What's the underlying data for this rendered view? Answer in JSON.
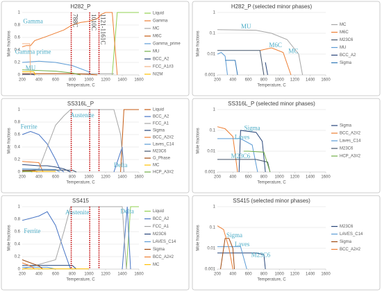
{
  "chart_data": [
    {
      "type": "line",
      "title": "H282_P",
      "xlabel": "Temperature, C",
      "ylabel": "Mole fractions",
      "log": false,
      "xlim": [
        200,
        1600
      ],
      "xticks": [
        200,
        400,
        600,
        800,
        1000,
        1200,
        1400,
        1600
      ],
      "ylim": [
        0,
        1
      ],
      "yticks": [
        0,
        0.2,
        0.4,
        0.6,
        0.8,
        1
      ],
      "grid": true,
      "vlines": [
        788,
        1010,
        1121
      ],
      "vline_labels": [
        "788C",
        "1010C",
        "1121-1161C"
      ],
      "annotations": [
        "Gamma",
        "Gamma prime",
        "MU"
      ],
      "series": [
        {
          "name": "Liquid",
          "color": "#92d050",
          "x": [
            1280,
            1340,
            1600
          ],
          "values": [
            0,
            1,
            1
          ]
        },
        {
          "name": "Gamma",
          "color": "#ed7d31",
          "x": [
            200,
            250,
            300,
            350,
            500,
            700,
            800,
            900,
            1000,
            1100,
            1150,
            1200,
            1280,
            1340
          ],
          "values": [
            0.45,
            0.47,
            0.47,
            0.55,
            0.62,
            0.72,
            0.8,
            0.84,
            0.86,
            0.9,
            0.97,
            1,
            1,
            0
          ]
        },
        {
          "name": "MC",
          "color": "#a5a5a5",
          "x": [
            200,
            1300
          ],
          "values": [
            0.02,
            0.02
          ]
        },
        {
          "name": "M6C",
          "color": "#c55a11",
          "x": [
            200,
            800,
            1000,
            1100
          ],
          "values": [
            0.02,
            0.02,
            0.01,
            0
          ]
        },
        {
          "name": "Gamma_prime",
          "color": "#5b9bd5",
          "x": [
            200,
            400,
            600,
            800,
            1000,
            1020
          ],
          "values": [
            0.2,
            0.22,
            0.2,
            0.15,
            0.05,
            0
          ]
        },
        {
          "name": "MU",
          "color": "#70ad47",
          "x": [
            200,
            600,
            800,
            900
          ],
          "values": [
            0.08,
            0.06,
            0.03,
            0
          ]
        },
        {
          "name": "BCC_A2",
          "color": "#264478",
          "x": [
            200,
            320,
            350
          ],
          "values": [
            0.01,
            0.01,
            0
          ]
        },
        {
          "name": "FCC_A1#3",
          "color": "#f4b183",
          "x": [
            200,
            290,
            300
          ],
          "values": [
            0.5,
            0.5,
            0
          ]
        },
        {
          "name": "NI2M",
          "color": "#ffc000",
          "x": [
            200,
            340,
            360
          ],
          "values": [
            0.05,
            0.05,
            0
          ]
        }
      ]
    },
    {
      "type": "line",
      "title": "H282_P (selected minor phases)",
      "xlabel": "Temperature, C",
      "ylabel": "Mole fractions",
      "log": true,
      "xlim": [
        200,
        1600
      ],
      "xticks": [
        200,
        400,
        600,
        800,
        1000,
        1200,
        1400,
        1600
      ],
      "ylim": [
        0.001,
        1
      ],
      "yticks": [
        0.001,
        0.01,
        0.1,
        1
      ],
      "grid": true,
      "annotations": [
        "MU",
        "M6C",
        "MC"
      ],
      "series": [
        {
          "name": "MC",
          "color": "#a5a5a5",
          "x": [
            200,
            700,
            900,
            1100,
            1250,
            1300
          ],
          "values": [
            0.15,
            0.14,
            0.1,
            0.05,
            0.01,
            0.001
          ]
        },
        {
          "name": "M6C",
          "color": "#ed7d31",
          "x": [
            750,
            900,
            1050,
            1150
          ],
          "values": [
            0.015,
            0.02,
            0.012,
            0.001
          ]
        },
        {
          "name": "M23C6",
          "color": "#44546a",
          "x": [
            200,
            750,
            800
          ],
          "values": [
            0.015,
            0.015,
            0.001
          ]
        },
        {
          "name": "MU",
          "color": "#5b9bd5",
          "x": [
            200,
            250,
            300,
            330
          ],
          "values": [
            0.01,
            0.012,
            0.008,
            0.001
          ]
        },
        {
          "name": "BCC_A2",
          "color": "#264478",
          "x": [
            820,
            850
          ],
          "values": [
            0.004,
            0.001
          ]
        },
        {
          "name": "Sigma",
          "color": "#2e75b6",
          "x": [
            300,
            430,
            460
          ],
          "values": [
            0.005,
            0.005,
            0.001
          ]
        }
      ]
    },
    {
      "type": "line",
      "title": "SS316L_P",
      "xlabel": "Temperature, C",
      "ylabel": "Mole fractions",
      "log": false,
      "xlim": [
        200,
        1600
      ],
      "xticks": [
        200,
        400,
        600,
        800,
        1000,
        1200,
        1400,
        1600
      ],
      "ylim": [
        0,
        1
      ],
      "yticks": [
        0,
        0.2,
        0.4,
        0.6,
        0.8,
        1
      ],
      "grid": true,
      "vlines": [
        788,
        1010,
        1121
      ],
      "annotations": [
        "Ferrite",
        "Austenite",
        "Delta"
      ],
      "series": [
        {
          "name": "Liquid",
          "color": "#c55a11",
          "x": [
            1380,
            1420,
            1600
          ],
          "values": [
            0,
            1,
            1
          ]
        },
        {
          "name": "BCC_A2",
          "color": "#4472c4",
          "x": [
            200,
            300,
            400,
            500,
            600,
            650,
            700,
            1000,
            1300,
            1400,
            1420
          ],
          "values": [
            0.6,
            0.65,
            0.6,
            0.45,
            0.2,
            0.05,
            0,
            null,
            0,
            0.4,
            0
          ]
        },
        {
          "name": "FCC_A1",
          "color": "#a5a5a5",
          "x": [
            200,
            400,
            500,
            600,
            700,
            780,
            1300,
            1380,
            1420
          ],
          "values": [
            0,
            0.05,
            0.4,
            0.75,
            0.9,
            1,
            1,
            0.6,
            0
          ]
        },
        {
          "name": "Sigma",
          "color": "#264478",
          "x": [
            200,
            400,
            500,
            600,
            700,
            780
          ],
          "values": [
            0.12,
            0.1,
            0.1,
            0.08,
            0.05,
            0
          ]
        },
        {
          "name": "BCC_A2#2",
          "color": "#ed7d31",
          "x": [
            200,
            400,
            450
          ],
          "values": [
            0.17,
            0.15,
            0
          ]
        },
        {
          "name": "Laves_C14",
          "color": "#5b9bd5",
          "x": [
            200,
            600,
            650
          ],
          "values": [
            0.05,
            0.04,
            0
          ]
        },
        {
          "name": "M23C6",
          "color": "#44546a",
          "x": [
            200,
            800,
            850
          ],
          "values": [
            0.03,
            0.03,
            0
          ]
        },
        {
          "name": "G_Phase",
          "color": "#9e480e",
          "x": [
            200,
            350,
            380
          ],
          "values": [
            0.02,
            0.02,
            0
          ]
        },
        {
          "name": "MC",
          "color": "#ffc000",
          "x": [
            200,
            600
          ],
          "values": [
            0.01,
            0.01
          ]
        },
        {
          "name": "HCP_A3#2",
          "color": "#70ad47",
          "x": [
            200,
            300,
            320
          ],
          "values": [
            0.01,
            0.01,
            0
          ]
        }
      ]
    },
    {
      "type": "line",
      "title": "SS316L_P (selected minor phases)",
      "xlabel": "Temperature, C",
      "ylabel": "Mole fractions",
      "log": true,
      "xlim": [
        200,
        1600
      ],
      "xticks": [
        200,
        400,
        600,
        800,
        1000,
        1200,
        1400,
        1600
      ],
      "ylim": [
        0.001,
        1
      ],
      "yticks": [
        0.001,
        0.01,
        0.1,
        1
      ],
      "grid": true,
      "annotations": [
        "Sigma",
        "Laves",
        "M23C6"
      ],
      "series": [
        {
          "name": "Sigma",
          "color": "#264478",
          "x": [
            480,
            500,
            700,
            780,
            820
          ],
          "values": [
            0.001,
            0.1,
            0.08,
            0.03,
            0.001
          ]
        },
        {
          "name": "BCC_A2#2",
          "color": "#ed7d31",
          "x": [
            200,
            300,
            400,
            460
          ],
          "values": [
            0.15,
            0.12,
            0.05,
            0.001
          ]
        },
        {
          "name": "Laves_C14",
          "color": "#5b9bd5",
          "x": [
            200,
            500,
            650,
            720
          ],
          "values": [
            0.04,
            0.04,
            0.02,
            0.001
          ]
        },
        {
          "name": "M23C6",
          "color": "#44546a",
          "x": [
            200,
            700,
            850,
            880
          ],
          "values": [
            0.004,
            0.004,
            0.003,
            0.001
          ]
        },
        {
          "name": "HCP_A3#2",
          "color": "#70ad47",
          "x": [
            540,
            600,
            800,
            880
          ],
          "values": [
            0.01,
            0.01,
            0.009,
            0.001
          ]
        }
      ]
    },
    {
      "type": "line",
      "title": "SS415",
      "xlabel": "Temperature, C",
      "ylabel": "Mole fractions",
      "log": false,
      "xlim": [
        200,
        1600
      ],
      "xticks": [
        200,
        400,
        600,
        800,
        1000,
        1200,
        1400,
        1600
      ],
      "ylim": [
        0,
        1
      ],
      "yticks": [
        0,
        0.2,
        0.4,
        0.6,
        0.8,
        1
      ],
      "grid": true,
      "vlines": [
        788,
        1010,
        1121
      ],
      "annotations": [
        "Ferrite",
        "Austenite",
        "Delta"
      ],
      "series": [
        {
          "name": "Liquid",
          "color": "#92d050",
          "x": [
            1450,
            1500,
            1600
          ],
          "values": [
            0,
            1,
            1
          ]
        },
        {
          "name": "BCC_A2",
          "color": "#4472c4",
          "x": [
            200,
            400,
            500,
            600,
            700,
            780,
            1000,
            1400,
            1460,
            1500
          ],
          "values": [
            0.78,
            0.85,
            0.92,
            0.7,
            0.3,
            0,
            null,
            0,
            1,
            0
          ]
        },
        {
          "name": "FCC_A1",
          "color": "#a5a5a5",
          "x": [
            200,
            600,
            700,
            780,
            1400,
            1450
          ],
          "values": [
            0,
            0.15,
            0.6,
            1,
            1,
            0
          ]
        },
        {
          "name": "M23C6",
          "color": "#264478",
          "x": [
            200,
            800,
            850
          ],
          "values": [
            0.06,
            0.06,
            0
          ]
        },
        {
          "name": "LAVES_C14",
          "color": "#5b9bd5",
          "x": [
            200,
            500,
            600
          ],
          "values": [
            0.03,
            0.03,
            0
          ]
        },
        {
          "name": "Sigma",
          "color": "#9e480e",
          "x": [
            200,
            300,
            400,
            450
          ],
          "values": [
            0.15,
            0.1,
            0.05,
            0
          ]
        },
        {
          "name": "BCC_A2#2",
          "color": "#ed7d31",
          "x": [
            200,
            300,
            350
          ],
          "values": [
            0.1,
            0.05,
            0
          ]
        },
        {
          "name": "MC",
          "color": "#ffc000",
          "x": [
            200,
            1000
          ],
          "values": [
            0.005,
            0.005
          ]
        }
      ]
    },
    {
      "type": "line",
      "title": "SS415 (selected minor phases)",
      "xlabel": "Temperature, C",
      "ylabel": "Mole fractions",
      "log": true,
      "xlim": [
        200,
        1600
      ],
      "xticks": [
        200,
        400,
        600,
        800,
        1000,
        1200,
        1400,
        1600
      ],
      "ylim": [
        0.001,
        1
      ],
      "yticks": [
        0.001,
        0.01,
        0.1,
        1
      ],
      "grid": true,
      "annotations": [
        "Sigma",
        "Laves",
        "M23C6"
      ],
      "series": [
        {
          "name": "M23C6",
          "color": "#264478",
          "x": [
            200,
            700,
            800,
            820
          ],
          "values": [
            0.006,
            0.006,
            0.005,
            0.001
          ]
        },
        {
          "name": "LAVES_C14",
          "color": "#5b9bd5",
          "x": [
            200,
            500,
            580
          ],
          "values": [
            0.012,
            0.012,
            0.001
          ]
        },
        {
          "name": "Sigma",
          "color": "#9e480e",
          "x": [
            240,
            300,
            350,
            400,
            420
          ],
          "values": [
            0.001,
            0.03,
            0.03,
            0.01,
            0.001
          ]
        },
        {
          "name": "BCC_A2#2",
          "color": "#ed7d31",
          "x": [
            200,
            280,
            350,
            400
          ],
          "values": [
            0.12,
            0.08,
            0.01,
            0.001
          ]
        }
      ]
    }
  ]
}
